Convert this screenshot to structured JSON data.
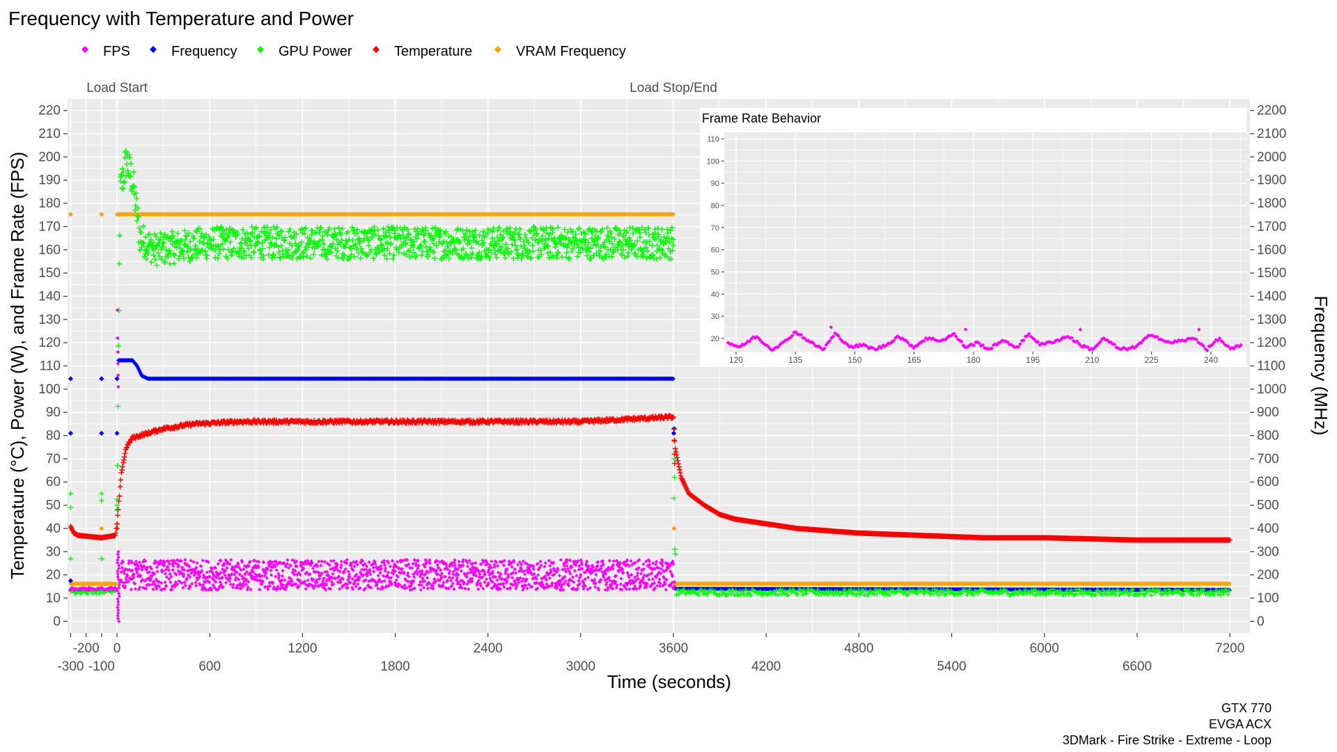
{
  "chart_data": {
    "type": "scatter",
    "title": "Frequency with Temperature and Power",
    "xlabel": "Time (seconds)",
    "ylabel_left": "Temperature (°C), Power (W), and Frame Rate (FPS)",
    "ylabel_right": "Frequency (MHz)",
    "xlim": [
      -320,
      7330
    ],
    "ylim_left": [
      -5,
      225
    ],
    "ylim_right": [
      -50,
      2250
    ],
    "x_ticks_row1": [
      -200,
      0,
      600,
      1200,
      1800,
      2400,
      3000,
      3600,
      4200,
      4800,
      5400,
      6000,
      6600,
      7200
    ],
    "x_ticks_row2": [
      -300,
      -100,
      0,
      600,
      1200,
      1800,
      2400,
      3000,
      3600,
      4200,
      4800,
      5400,
      6000,
      6600,
      7200
    ],
    "x_tick_labels_row1": [
      "-200",
      "0",
      "",
      "1200",
      "",
      "2400",
      "",
      "3600",
      "",
      "4800",
      "",
      "6000",
      "",
      "7200"
    ],
    "x_tick_labels_row2": [
      "-300",
      "-100",
      "",
      "600",
      "",
      "1800",
      "",
      "3000",
      "",
      "4200",
      "",
      "5400",
      "",
      "6600",
      ""
    ],
    "y_ticks_left": [
      0,
      10,
      20,
      30,
      40,
      50,
      60,
      70,
      80,
      90,
      100,
      110,
      120,
      130,
      140,
      150,
      160,
      170,
      180,
      190,
      200,
      210,
      220
    ],
    "y_ticks_right": [
      0,
      100,
      200,
      300,
      400,
      500,
      600,
      700,
      800,
      900,
      1000,
      1100,
      1200,
      1300,
      1400,
      1500,
      1600,
      1700,
      1800,
      1900,
      2000,
      2100,
      2200
    ],
    "grid": true,
    "legend_position": "top",
    "legend": [
      {
        "name": "FPS",
        "color": "#ff00ff"
      },
      {
        "name": "Frequency",
        "color": "#0000ff"
      },
      {
        "name": "GPU Power",
        "color": "#00ff00"
      },
      {
        "name": "Temperature",
        "color": "#ff0000"
      },
      {
        "name": "VRAM Frequency",
        "color": "#ffa500"
      }
    ],
    "annotations": [
      {
        "x": 0,
        "text": "Load Start"
      },
      {
        "x": 3600,
        "text": "Load Stop/End"
      }
    ],
    "phases": {
      "idle_before": [
        -300,
        0
      ],
      "load": [
        0,
        3600
      ],
      "idle_after": [
        3600,
        7200
      ]
    },
    "series": [
      {
        "name": "FPS",
        "axis": "left",
        "description_points": [
          [
            -300,
            14
          ],
          [
            -100,
            14
          ],
          [
            0,
            15
          ],
          [
            30,
            23
          ],
          [
            600,
            20
          ],
          [
            1800,
            20
          ],
          [
            3000,
            20
          ],
          [
            3600,
            20
          ],
          [
            3610,
            0
          ]
        ],
        "load_mean": 20,
        "load_min": 11,
        "load_max": 28
      },
      {
        "name": "Frequency",
        "axis": "right",
        "points": [
          [
            -300,
            1045
          ],
          [
            -300,
            810
          ],
          [
            -300,
            140
          ],
          [
            -100,
            1045
          ],
          [
            -100,
            810
          ],
          [
            -100,
            140
          ],
          [
            0,
            810
          ],
          [
            0,
            1045
          ],
          [
            10,
            1124
          ],
          [
            100,
            1124
          ],
          [
            130,
            1100
          ],
          [
            160,
            1058
          ],
          [
            200,
            1045
          ],
          [
            3600,
            1045
          ],
          [
            3605,
            830
          ],
          [
            3610,
            140
          ],
          [
            7200,
            135
          ]
        ]
      },
      {
        "name": "GPU Power",
        "axis": "left",
        "points": [
          [
            -300,
            55
          ],
          [
            -300,
            49
          ],
          [
            -300,
            27
          ],
          [
            -300,
            13
          ],
          [
            -100,
            13
          ],
          [
            -100,
            55
          ],
          [
            0,
            50
          ],
          [
            20,
            185
          ],
          [
            60,
            198
          ],
          [
            100,
            190
          ],
          [
            150,
            165
          ],
          [
            250,
            160
          ],
          [
            600,
            163
          ],
          [
            1800,
            163
          ],
          [
            3000,
            163
          ],
          [
            3600,
            163
          ],
          [
            3605,
            70
          ],
          [
            3610,
            30
          ],
          [
            3620,
            14
          ],
          [
            4800,
            13
          ],
          [
            7200,
            12
          ]
        ],
        "load_mean": 163,
        "load_min": 155,
        "load_max": 200
      },
      {
        "name": "Temperature",
        "axis": "left",
        "points": [
          [
            -300,
            41
          ],
          [
            -280,
            38
          ],
          [
            -250,
            37
          ],
          [
            -100,
            36
          ],
          [
            -10,
            37
          ],
          [
            0,
            42
          ],
          [
            30,
            65
          ],
          [
            60,
            75
          ],
          [
            100,
            79
          ],
          [
            200,
            81
          ],
          [
            300,
            83
          ],
          [
            500,
            85
          ],
          [
            800,
            86
          ],
          [
            1200,
            86
          ],
          [
            2400,
            86
          ],
          [
            3000,
            86
          ],
          [
            3300,
            87
          ],
          [
            3600,
            88
          ],
          [
            3610,
            75
          ],
          [
            3650,
            62
          ],
          [
            3700,
            55
          ],
          [
            3800,
            50
          ],
          [
            3900,
            46
          ],
          [
            4000,
            44
          ],
          [
            4200,
            42
          ],
          [
            4400,
            40
          ],
          [
            4600,
            39
          ],
          [
            4800,
            38
          ],
          [
            5200,
            37
          ],
          [
            5600,
            36
          ],
          [
            6000,
            36
          ],
          [
            6600,
            35
          ],
          [
            7200,
            35
          ]
        ]
      },
      {
        "name": "VRAM Frequency",
        "axis": "right",
        "points": [
          [
            -300,
            1753
          ],
          [
            -100,
            1753
          ],
          [
            -300,
            162
          ],
          [
            -100,
            162
          ],
          [
            0,
            1753
          ],
          [
            3600,
            1753
          ],
          [
            3605,
            400
          ],
          [
            3610,
            162
          ],
          [
            7200,
            162
          ]
        ]
      }
    ],
    "inset": {
      "title": "Frame Rate Behavior",
      "type": "scatter",
      "xlim": [
        117,
        249
      ],
      "ylim": [
        14,
        113
      ],
      "x_ticks": [
        120,
        135,
        150,
        165,
        180,
        195,
        210,
        225,
        240
      ],
      "y_ticks": [
        20,
        30,
        40,
        50,
        60,
        70,
        80,
        90,
        100,
        110
      ],
      "series": [
        {
          "name": "FPS",
          "points": [
            [
              118,
              18
            ],
            [
              121,
              16
            ],
            [
              125,
              21
            ],
            [
              129,
              15
            ],
            [
              132,
              18
            ],
            [
              135,
              23
            ],
            [
              139,
              18
            ],
            [
              142,
              15
            ],
            [
              145,
              22
            ],
            [
              149,
              16
            ],
            [
              152,
              17
            ],
            [
              155,
              15
            ],
            [
              158,
              17
            ],
            [
              161,
              21
            ],
            [
              165,
              16
            ],
            [
              168,
              20
            ],
            [
              172,
              19
            ],
            [
              175,
              22
            ],
            [
              178,
              16
            ],
            [
              181,
              18
            ],
            [
              184,
              15
            ],
            [
              187,
              19
            ],
            [
              191,
              16
            ],
            [
              194,
              22
            ],
            [
              197,
              17
            ],
            [
              201,
              19
            ],
            [
              204,
              21
            ],
            [
              207,
              17
            ],
            [
              210,
              15
            ],
            [
              213,
              20
            ],
            [
              217,
              15
            ],
            [
              221,
              16
            ],
            [
              225,
              22
            ],
            [
              229,
              18
            ],
            [
              233,
              19
            ],
            [
              236,
              20
            ],
            [
              239,
              15
            ],
            [
              242,
              20
            ],
            [
              245,
              15
            ],
            [
              248,
              17
            ]
          ]
        }
      ]
    },
    "caption_lines": [
      "GTX 770",
      "EVGA ACX",
      "3DMark - Fire Strike - Extreme - Loop"
    ]
  }
}
